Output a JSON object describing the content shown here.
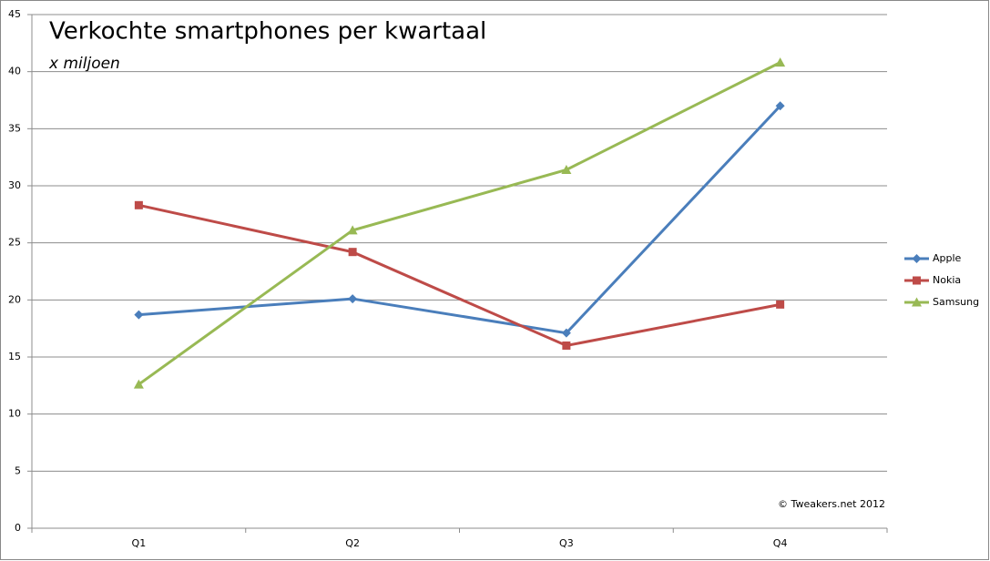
{
  "chart_data": {
    "type": "line",
    "title": "Verkochte smartphones per kwartaal",
    "subtitle": "x miljoen",
    "annotation": "© Tweakers.net 2012",
    "categories": [
      "Q1",
      "Q2",
      "Q3",
      "Q4"
    ],
    "series": [
      {
        "name": "Apple",
        "color": "#4a7ebb",
        "marker": "diamond",
        "values": [
          18.7,
          20.1,
          17.1,
          37.0
        ]
      },
      {
        "name": "Nokia",
        "color": "#be4b48",
        "marker": "square",
        "values": [
          28.3,
          24.2,
          16.0,
          19.6
        ]
      },
      {
        "name": "Samsung",
        "color": "#98b954",
        "marker": "triangle",
        "values": [
          12.6,
          26.1,
          31.4,
          40.8
        ]
      }
    ],
    "ylim": [
      0,
      45
    ],
    "yticks": [
      0,
      5,
      10,
      15,
      20,
      25,
      30,
      35,
      40,
      45
    ],
    "grid": true,
    "legend": "right"
  }
}
